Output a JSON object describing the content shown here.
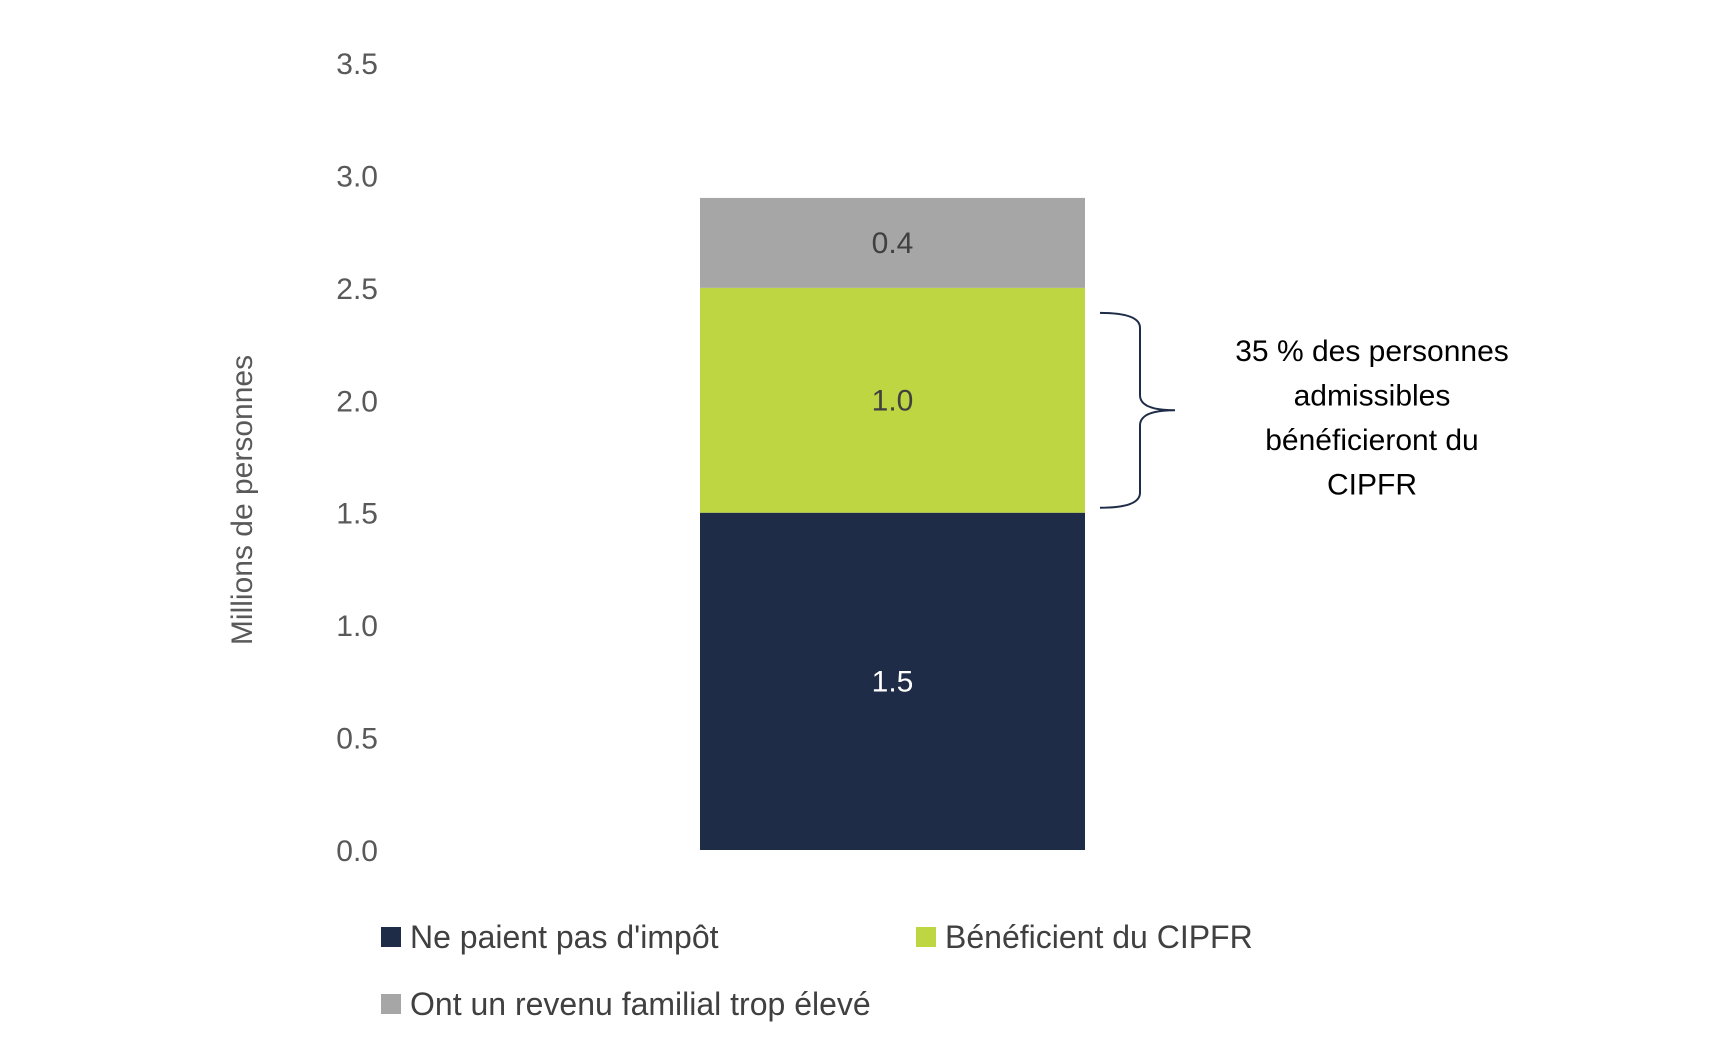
{
  "chart_data": {
    "type": "bar",
    "stacked": true,
    "ylabel": "Millions de personnes",
    "ylim": [
      0,
      3.5
    ],
    "yticks": [
      "0.0",
      "0.5",
      "1.0",
      "1.5",
      "2.0",
      "2.5",
      "3.0",
      "3.5"
    ],
    "grid": false,
    "legend_position": "bottom",
    "series": [
      {
        "name": "Ne paient pas d'impôt",
        "value": 1.5,
        "label": "1.5",
        "color": "#1f2c48",
        "label_color": "#ffffff"
      },
      {
        "name": "Bénéficient du CIPFR",
        "value": 1.0,
        "label": "1.0",
        "color": "#bdd641",
        "label_color": "#404040"
      },
      {
        "name": "Ont un revenu familial trop élevé",
        "value": 0.4,
        "label": "0.4",
        "color": "#a6a6a6",
        "label_color": "#404040"
      }
    ],
    "annotation": {
      "lines": [
        "35 % des personnes",
        "admissibles",
        "bénéficieront du",
        "CIPFR"
      ],
      "bracket_color": "#1f2c48"
    }
  }
}
